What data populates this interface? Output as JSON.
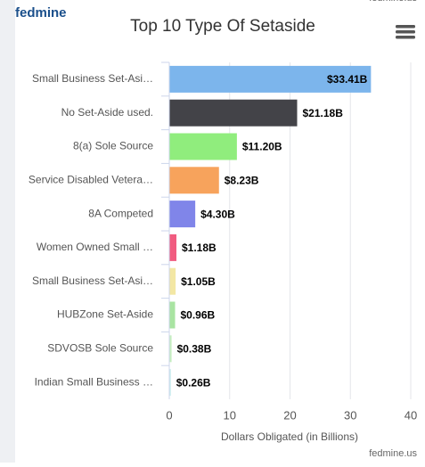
{
  "brand": "fedmine",
  "watermark": "fedmine.us",
  "chart_data": {
    "type": "bar",
    "orientation": "horizontal",
    "title": "Top 10 Type Of Setaside",
    "x_label": "Dollars Obligated (in Billions)",
    "categories": [
      "Small Business Set-Asi…",
      "No Set-Aside used.",
      "8(a) Sole Source",
      "Service Disabled Vetera…",
      "8A Competed",
      "Women Owned Small …",
      "Small Business Set-Asi…",
      "HUBZone Set-Aside",
      "SDVOSB Sole Source",
      "Indian Small Business …"
    ],
    "values": [
      33.41,
      21.18,
      11.2,
      8.23,
      4.3,
      1.18,
      1.05,
      0.96,
      0.38,
      0.26
    ],
    "value_labels": [
      "$33.41B",
      "$21.18B",
      "$11.20B",
      "$8.23B",
      "$4.30B",
      "$1.18B",
      "$1.05B",
      "$0.96B",
      "$0.38B",
      "$0.26B"
    ],
    "colors": [
      "#7cb5ec",
      "#434348",
      "#90ed7d",
      "#f7a35c",
      "#8085e9",
      "#f15c80",
      "#f3e7a4",
      "#a9e4a2",
      "#c6eec0",
      "#c9eeee"
    ],
    "xlim": [
      0,
      40
    ],
    "xticks": [
      0,
      10,
      20,
      30,
      40
    ],
    "grid": true
  }
}
